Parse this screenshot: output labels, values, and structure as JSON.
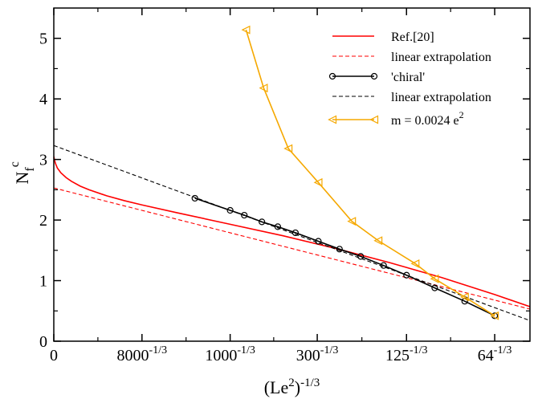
{
  "chart_data": {
    "type": "line",
    "xlabel": {
      "base": "(Le",
      "sup1": "2",
      "close": ")",
      "sup2": "-1/3"
    },
    "ylabel": {
      "base": "N",
      "sub": "f",
      "sup": "c"
    },
    "xlim": [
      0,
      0.27
    ],
    "ylim": [
      0,
      5.5
    ],
    "x_ticks": [
      {
        "value": 0,
        "base": "0",
        "exp": ""
      },
      {
        "value": 0.05,
        "base": "8000",
        "exp": "-1/3"
      },
      {
        "value": 0.1,
        "base": "1000",
        "exp": "-1/3"
      },
      {
        "value": 0.14938,
        "base": "300",
        "exp": "-1/3"
      },
      {
        "value": 0.2,
        "base": "125",
        "exp": "-1/3"
      },
      {
        "value": 0.25,
        "base": "64",
        "exp": "-1/3"
      }
    ],
    "y_ticks": [
      0,
      1,
      2,
      3,
      4,
      5
    ],
    "legend_position": "top-right",
    "series": [
      {
        "name": "Ref.[20]",
        "color": "#ff0000",
        "style": "solid",
        "marker": "none",
        "x": [
          0,
          0.0005,
          0.001,
          0.002,
          0.004,
          0.007,
          0.01,
          0.015,
          0.02,
          0.03,
          0.04,
          0.05,
          0.07,
          0.1,
          0.13,
          0.16,
          0.19,
          0.22,
          0.25,
          0.27
        ],
        "y": [
          3.05,
          2.98,
          2.93,
          2.86,
          2.78,
          2.7,
          2.64,
          2.56,
          2.5,
          2.4,
          2.32,
          2.25,
          2.12,
          1.93,
          1.74,
          1.53,
          1.3,
          1.05,
          0.77,
          0.57
        ]
      },
      {
        "name": "linear extrapolation",
        "color": "#ff0000",
        "style": "dashed",
        "marker": "none",
        "x": [
          0,
          0.27
        ],
        "y": [
          2.53,
          0.53
        ]
      },
      {
        "name": "'chiral'",
        "color": "#000000",
        "style": "solid",
        "marker": "circle",
        "x": [
          0.08,
          0.1,
          0.108,
          0.118,
          0.127,
          0.137,
          0.15,
          0.162,
          0.174,
          0.187,
          0.2,
          0.216,
          0.233,
          0.25
        ],
        "y": [
          2.36,
          2.16,
          2.08,
          1.97,
          1.89,
          1.79,
          1.65,
          1.52,
          1.4,
          1.25,
          1.09,
          0.88,
          0.66,
          0.42
        ]
      },
      {
        "name": "linear extrapolation",
        "color": "#000000",
        "style": "dashed",
        "marker": "none",
        "x": [
          0,
          0.27
        ],
        "y": [
          3.23,
          0.34
        ]
      },
      {
        "name": "m = 0.0024 e",
        "name_sup": "2",
        "color": "#f5a800",
        "style": "solid",
        "marker": "triangle-left",
        "x": [
          0.109,
          0.119,
          0.133,
          0.15,
          0.169,
          0.184,
          0.205,
          0.216,
          0.233,
          0.25
        ],
        "y": [
          5.14,
          4.18,
          3.18,
          2.62,
          1.98,
          1.66,
          1.28,
          1.03,
          0.73,
          0.42
        ]
      }
    ]
  }
}
